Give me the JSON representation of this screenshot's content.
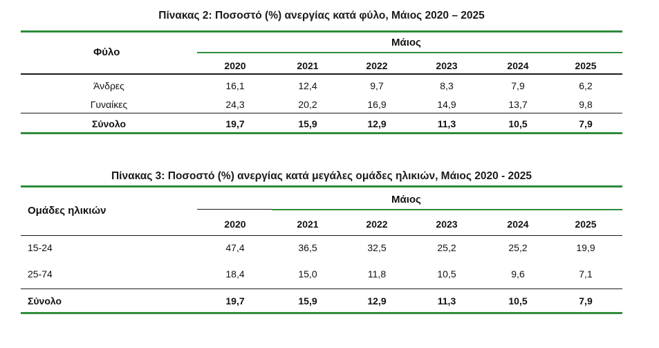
{
  "colors": {
    "accent_green": "#2e8b3a",
    "rule_dark": "#1a1a1a"
  },
  "table2": {
    "title": "Πίνακας 2: Ποσοστό (%) ανεργίας κατά φύλο, Μάιος 2020 – 2025",
    "row_header": "Φύλο",
    "group_header": "Μάιος",
    "years": [
      "2020",
      "2021",
      "2022",
      "2023",
      "2024",
      "2025"
    ],
    "rows": [
      {
        "label": "Άνδρες",
        "values": [
          "16,1",
          "12,4",
          "9,7",
          "8,3",
          "7,9",
          "6,2"
        ]
      },
      {
        "label": "Γυναίκες",
        "values": [
          "24,3",
          "20,2",
          "16,9",
          "14,9",
          "13,7",
          "9,8"
        ]
      }
    ],
    "total": {
      "label": "Σύνολο",
      "values": [
        "19,7",
        "15,9",
        "12,9",
        "11,3",
        "10,5",
        "7,9"
      ]
    }
  },
  "table3": {
    "title": "Πίνακας 3: Ποσοστό (%) ανεργίας κατά μεγάλες ομάδες ηλικιών, Μάιος 2020 - 2025",
    "row_header": "Ομάδες ηλικιών",
    "group_header": "Μάιος",
    "years": [
      "2020",
      "2021",
      "2022",
      "2023",
      "2024",
      "2025"
    ],
    "rows": [
      {
        "label": "15-24",
        "values": [
          "47,4",
          "36,5",
          "32,5",
          "25,2",
          "25,2",
          "19,9"
        ]
      },
      {
        "label": "25-74",
        "values": [
          "18,4",
          "15,0",
          "11,8",
          "10,5",
          "9,6",
          "7,1"
        ]
      }
    ],
    "total": {
      "label": "Σύνολο",
      "values": [
        "19,7",
        "15,9",
        "12,9",
        "11,3",
        "10,5",
        "7,9"
      ]
    }
  }
}
